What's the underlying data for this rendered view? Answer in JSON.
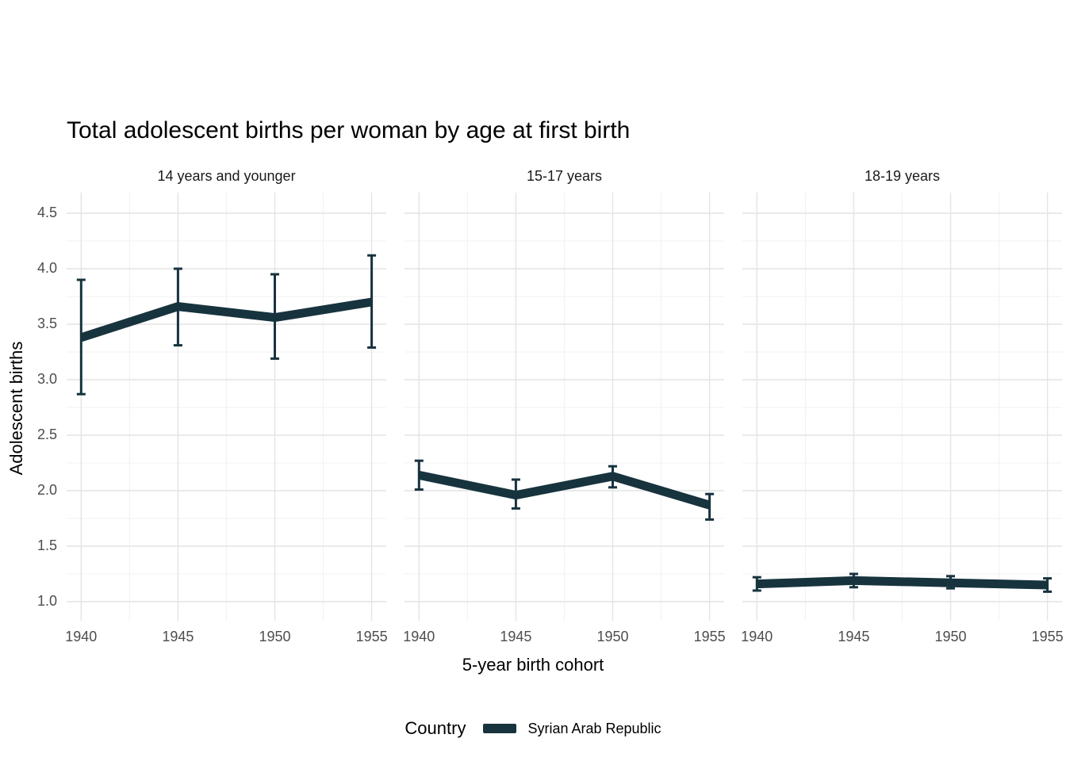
{
  "chart_data": {
    "type": "line",
    "title": "Total adolescent births per woman by age at first birth",
    "xlabel": "5-year birth cohort",
    "ylabel": "Adolescent births",
    "x": [
      1940,
      1945,
      1950,
      1955
    ],
    "y_ticks": [
      1.0,
      1.5,
      2.0,
      2.5,
      3.0,
      3.5,
      4.0,
      4.5
    ],
    "ylim": [
      1.0,
      4.5
    ],
    "grid": true,
    "line_color": "#17333e",
    "major_grid_color": "#e4e4e4",
    "minor_grid_color": "#f1f1f1",
    "tick_label_color": "#4d4d4d",
    "facets": [
      {
        "label": "14 years and younger",
        "series": [
          {
            "name": "Syrian Arab Republic",
            "values": [
              3.38,
              3.66,
              3.56,
              3.7
            ],
            "ci_lower": [
              2.87,
              3.31,
              3.19,
              3.29
            ],
            "ci_upper": [
              3.9,
              4.0,
              3.95,
              4.12
            ]
          }
        ]
      },
      {
        "label": "15-17 years",
        "series": [
          {
            "name": "Syrian Arab Republic",
            "values": [
              2.14,
              1.96,
              2.13,
              1.87
            ],
            "ci_lower": [
              2.01,
              1.84,
              2.03,
              1.74
            ],
            "ci_upper": [
              2.27,
              2.1,
              2.22,
              1.97
            ]
          }
        ]
      },
      {
        "label": "18-19 years",
        "series": [
          {
            "name": "Syrian Arab Republic",
            "values": [
              1.16,
              1.19,
              1.17,
              1.15
            ],
            "ci_lower": [
              1.1,
              1.13,
              1.12,
              1.09
            ],
            "ci_upper": [
              1.22,
              1.25,
              1.23,
              1.21
            ]
          }
        ]
      }
    ],
    "legend": {
      "title": "Country",
      "position": "bottom",
      "entries": [
        "Syrian Arab Republic"
      ]
    }
  }
}
